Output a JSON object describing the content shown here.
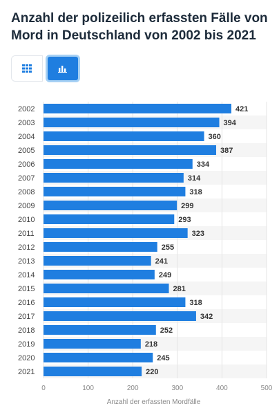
{
  "title": "Anzahl der polizeilich erfassten Fälle von Mord in Deutschland von 2002 bis 2021",
  "toolbar": {
    "table_icon": "table-grid-icon",
    "chart_icon": "bar-chart-icon",
    "active": "chart"
  },
  "colors": {
    "bar": "#1f7ee0",
    "accent": "#1f7ee0",
    "grid": "#e4e4e4",
    "stripe": "#f5f5f5"
  },
  "chart_data": {
    "type": "bar",
    "orientation": "horizontal",
    "categories": [
      "2002",
      "2003",
      "2004",
      "2005",
      "2006",
      "2007",
      "2008",
      "2009",
      "2010",
      "2011",
      "2012",
      "2013",
      "2014",
      "2015",
      "2016",
      "2017",
      "2018",
      "2019",
      "2020",
      "2021"
    ],
    "values": [
      421,
      394,
      360,
      387,
      334,
      314,
      318,
      299,
      293,
      323,
      255,
      241,
      249,
      281,
      318,
      342,
      252,
      218,
      245,
      220
    ],
    "xlabel": "Anzahl der erfassten Mordfälle",
    "ylabel": "",
    "xlim": [
      0,
      500
    ],
    "xticks": [
      0,
      100,
      200,
      300,
      400,
      500
    ],
    "grid": true,
    "data_labels": true
  }
}
